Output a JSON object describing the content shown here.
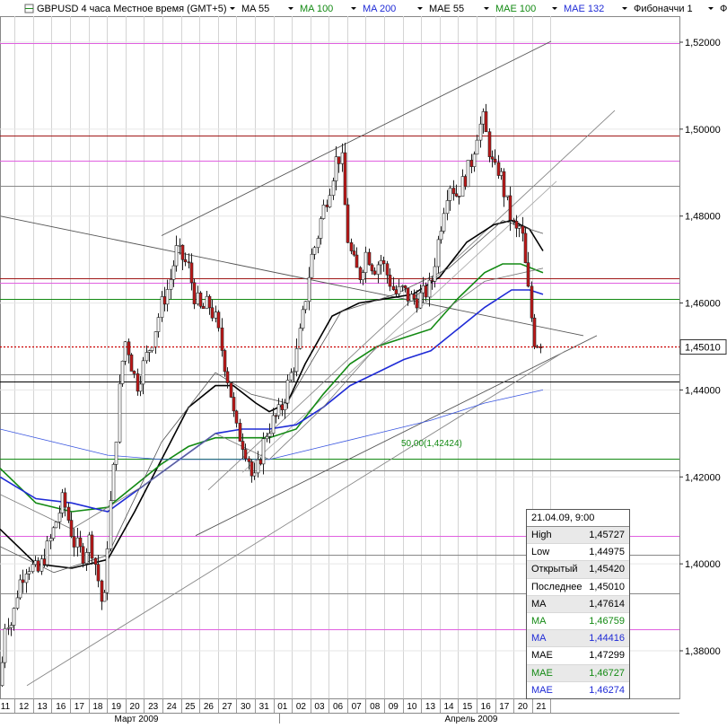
{
  "header": {
    "title": "GBPUSD 4 часа Местное время (GMT+5)",
    "indicators": [
      {
        "label": "MA 55",
        "color": "#000000"
      },
      {
        "label": "MA 100",
        "color": "#138a13"
      },
      {
        "label": "MA 200",
        "color": "#1f2bd6"
      },
      {
        "label": "MAE 55",
        "color": "#000000"
      },
      {
        "label": "MAE 100",
        "color": "#138a13"
      },
      {
        "label": "MAE 132",
        "color": "#1f2bd6"
      },
      {
        "label": "Фибоначчи 1",
        "color": "#000000"
      },
      {
        "label": "Фибона",
        "color": "#000000"
      }
    ],
    "dropdown_icon": "triangle-down-icon"
  },
  "chart_data": {
    "type": "candlestick",
    "symbol": "GBPUSD",
    "timeframe": "4 часа",
    "y_axis": {
      "min": 1.37,
      "max": 1.52,
      "ticks": [
        "1,52000",
        "1,50000",
        "1,48000",
        "1,46000",
        "1,44000",
        "1,42000",
        "1,40000",
        "1,38000"
      ]
    },
    "x_axis": {
      "day_labels": [
        "11",
        "12",
        "13",
        "16",
        "17",
        "18",
        "19",
        "20",
        "23",
        "24",
        "25",
        "26",
        "27",
        "30",
        "31",
        "01",
        "02",
        "03",
        "06",
        "07",
        "08",
        "09",
        "10",
        "13",
        "14",
        "15",
        "16",
        "17",
        "20",
        "21"
      ],
      "month_labels": [
        "Март 2009",
        "Апрель 2009"
      ]
    },
    "last_price_label": "1,45010",
    "fibonacci_label": "50,00(1,42424)",
    "close_path": [
      [
        0,
        1.372
      ],
      [
        6,
        1.388
      ],
      [
        13,
        1.386
      ],
      [
        20,
        1.395
      ],
      [
        30,
        1.4
      ],
      [
        42,
        1.398
      ],
      [
        55,
        1.405
      ],
      [
        70,
        1.415
      ],
      [
        82,
        1.405
      ],
      [
        92,
        1.402
      ],
      [
        100,
        1.406
      ],
      [
        108,
        1.398
      ],
      [
        115,
        1.388
      ],
      [
        120,
        1.408
      ],
      [
        128,
        1.426
      ],
      [
        134,
        1.444
      ],
      [
        140,
        1.452
      ],
      [
        146,
        1.446
      ],
      [
        152,
        1.441
      ],
      [
        160,
        1.446
      ],
      [
        170,
        1.452
      ],
      [
        180,
        1.46
      ],
      [
        188,
        1.464
      ],
      [
        196,
        1.472
      ],
      [
        204,
        1.47
      ],
      [
        210,
        1.468
      ],
      [
        216,
        1.462
      ],
      [
        224,
        1.458
      ],
      [
        232,
        1.46
      ],
      [
        240,
        1.456
      ],
      [
        248,
        1.448
      ],
      [
        256,
        1.44
      ],
      [
        262,
        1.431
      ],
      [
        268,
        1.429
      ],
      [
        276,
        1.425
      ],
      [
        282,
        1.418
      ],
      [
        288,
        1.423
      ],
      [
        296,
        1.43
      ],
      [
        304,
        1.433
      ],
      [
        312,
        1.435
      ],
      [
        320,
        1.441
      ],
      [
        330,
        1.448
      ],
      [
        338,
        1.458
      ],
      [
        346,
        1.47
      ],
      [
        352,
        1.474
      ],
      [
        358,
        1.48
      ],
      [
        366,
        1.486
      ],
      [
        374,
        1.493
      ],
      [
        380,
        1.494
      ],
      [
        386,
        1.476
      ],
      [
        392,
        1.47
      ],
      [
        400,
        1.466
      ],
      [
        408,
        1.472
      ],
      [
        416,
        1.468
      ],
      [
        424,
        1.47
      ],
      [
        432,
        1.466
      ],
      [
        440,
        1.462
      ],
      [
        448,
        1.463
      ],
      [
        456,
        1.461
      ],
      [
        464,
        1.461
      ],
      [
        472,
        1.462
      ],
      [
        480,
        1.464
      ],
      [
        486,
        1.472
      ],
      [
        494,
        1.482
      ],
      [
        500,
        1.488
      ],
      [
        508,
        1.485
      ],
      [
        516,
        1.488
      ],
      [
        524,
        1.492
      ],
      [
        532,
        1.5
      ],
      [
        538,
        1.502
      ],
      [
        544,
        1.496
      ],
      [
        550,
        1.49
      ],
      [
        556,
        1.491
      ],
      [
        562,
        1.485
      ],
      [
        568,
        1.48
      ],
      [
        574,
        1.476
      ],
      [
        580,
        1.478
      ],
      [
        584,
        1.47
      ],
      [
        588,
        1.463
      ],
      [
        592,
        1.456
      ],
      [
        596,
        1.45
      ],
      [
        600,
        1.452
      ],
      [
        604,
        1.45
      ]
    ],
    "moving_averages": [
      {
        "name": "MA 55",
        "color": "#000000",
        "width": 1.6,
        "points": [
          [
            0,
            1.408
          ],
          [
            40,
            1.4
          ],
          [
            80,
            1.399
          ],
          [
            120,
            1.401
          ],
          [
            150,
            1.412
          ],
          [
            180,
            1.424
          ],
          [
            210,
            1.436
          ],
          [
            240,
            1.441
          ],
          [
            260,
            1.441
          ],
          [
            285,
            1.437
          ],
          [
            300,
            1.435
          ],
          [
            320,
            1.437
          ],
          [
            340,
            1.446
          ],
          [
            370,
            1.457
          ],
          [
            400,
            1.46
          ],
          [
            430,
            1.461
          ],
          [
            460,
            1.462
          ],
          [
            490,
            1.466
          ],
          [
            520,
            1.474
          ],
          [
            550,
            1.478
          ],
          [
            570,
            1.479
          ],
          [
            590,
            1.477
          ],
          [
            605,
            1.472
          ]
        ]
      },
      {
        "name": "MA 100",
        "color": "#138a13",
        "width": 1.6,
        "points": [
          [
            0,
            1.422
          ],
          [
            40,
            1.414
          ],
          [
            80,
            1.412
          ],
          [
            120,
            1.413
          ],
          [
            150,
            1.418
          ],
          [
            180,
            1.423
          ],
          [
            210,
            1.427
          ],
          [
            240,
            1.429
          ],
          [
            270,
            1.429
          ],
          [
            300,
            1.429
          ],
          [
            330,
            1.431
          ],
          [
            360,
            1.439
          ],
          [
            390,
            1.446
          ],
          [
            420,
            1.45
          ],
          [
            450,
            1.452
          ],
          [
            480,
            1.454
          ],
          [
            510,
            1.461
          ],
          [
            540,
            1.467
          ],
          [
            560,
            1.469
          ],
          [
            580,
            1.469
          ],
          [
            605,
            1.467
          ]
        ]
      },
      {
        "name": "MA 200",
        "color": "#1f2bd6",
        "width": 1.6,
        "points": [
          [
            0,
            1.42
          ],
          [
            40,
            1.415
          ],
          [
            80,
            1.414
          ],
          [
            120,
            1.412
          ],
          [
            160,
            1.418
          ],
          [
            200,
            1.424
          ],
          [
            240,
            1.43
          ],
          [
            270,
            1.431
          ],
          [
            300,
            1.431
          ],
          [
            330,
            1.432
          ],
          [
            360,
            1.436
          ],
          [
            390,
            1.441
          ],
          [
            420,
            1.444
          ],
          [
            450,
            1.447
          ],
          [
            480,
            1.449
          ],
          [
            510,
            1.454
          ],
          [
            540,
            1.459
          ],
          [
            570,
            1.463
          ],
          [
            590,
            1.463
          ],
          [
            605,
            1.462
          ]
        ]
      },
      {
        "name": "MAE 55",
        "color": "#555555",
        "width": 0.8,
        "points": [
          [
            0,
            1.404
          ],
          [
            60,
            1.398
          ],
          [
            120,
            1.402
          ],
          [
            180,
            1.428
          ],
          [
            240,
            1.444
          ],
          [
            280,
            1.439
          ],
          [
            320,
            1.437
          ],
          [
            380,
            1.458
          ],
          [
            440,
            1.462
          ],
          [
            500,
            1.468
          ],
          [
            560,
            1.479
          ],
          [
            605,
            1.476
          ]
        ]
      },
      {
        "name": "MAE 100",
        "color": "#777777",
        "width": 0.8,
        "points": [
          [
            0,
            1.416
          ],
          [
            80,
            1.408
          ],
          [
            160,
            1.418
          ],
          [
            240,
            1.43
          ],
          [
            300,
            1.424
          ],
          [
            360,
            1.436
          ],
          [
            420,
            1.45
          ],
          [
            480,
            1.456
          ],
          [
            540,
            1.465
          ],
          [
            605,
            1.468
          ]
        ]
      },
      {
        "name": "MAE 132",
        "color": "#3a56e0",
        "width": 0.8,
        "points": [
          [
            0,
            1.431
          ],
          [
            60,
            1.428
          ],
          [
            120,
            1.425
          ],
          [
            180,
            1.424
          ],
          [
            240,
            1.424
          ],
          [
            300,
            1.424
          ],
          [
            360,
            1.427
          ],
          [
            420,
            1.43
          ],
          [
            480,
            1.433
          ],
          [
            540,
            1.437
          ],
          [
            605,
            1.44
          ]
        ]
      }
    ],
    "horizontal_levels": [
      {
        "y": 1.5197,
        "color": "#e060e0"
      },
      {
        "y": 1.4985,
        "color": "#a01818"
      },
      {
        "y": 1.4928,
        "color": "#e060e0"
      },
      {
        "y": 1.487,
        "color": "#888888"
      },
      {
        "y": 1.4657,
        "color": "#a01818"
      },
      {
        "y": 1.4647,
        "color": "#e060e0"
      },
      {
        "y": 1.461,
        "color": "#138a13"
      },
      {
        "y": 1.4436,
        "color": "#888888"
      },
      {
        "y": 1.442,
        "color": "#000000"
      },
      {
        "y": 1.4348,
        "color": "#888888"
      },
      {
        "y": 1.4242,
        "color": "#138a13"
      },
      {
        "y": 1.4215,
        "color": "#888888"
      },
      {
        "y": 1.4065,
        "color": "#e060e0"
      },
      {
        "y": 1.402,
        "color": "#888888"
      },
      {
        "y": 1.3933,
        "color": "#888888"
      },
      {
        "y": 1.385,
        "color": "#e060e0"
      }
    ],
    "trend_lines": [
      {
        "from": [
          180,
          1.4755
        ],
        "to": [
          614,
          1.5202
        ],
        "color": "#555555"
      },
      {
        "from": [
          0,
          1.48
        ],
        "to": [
          650,
          1.4525
        ],
        "color": "#555555"
      },
      {
        "from": [
          218,
          1.4065
        ],
        "to": [
          665,
          1.4525
        ],
        "color": "#555555"
      },
      {
        "from": [
          30,
          1.372
        ],
        "to": [
          630,
          1.449
        ],
        "color": "#888888"
      },
      {
        "from": [
          232,
          1.417
        ],
        "to": [
          685,
          1.5043
        ],
        "color": "#888888"
      },
      {
        "from": [
          270,
          1.421
        ],
        "to": [
          620,
          1.488
        ],
        "color": "#aaaaaa"
      }
    ],
    "bid_line": {
      "y": 1.4501,
      "color": "#cc0000"
    }
  },
  "infobox": {
    "timestamp": "21.04.09, 9:00",
    "rows": [
      {
        "label": "High",
        "value": "1,45727",
        "color": "#000000"
      },
      {
        "label": "Low",
        "value": "1,44975",
        "color": "#000000"
      },
      {
        "label": "Открытый",
        "value": "1,45420",
        "color": "#000000"
      },
      {
        "label": "Последнее",
        "value": "1,45010",
        "color": "#000000"
      },
      {
        "label": "MA",
        "value": "1,47614",
        "color": "#000000"
      },
      {
        "label": "MA",
        "value": "1,46759",
        "color": "#138a13"
      },
      {
        "label": "MA",
        "value": "1,44416",
        "color": "#1f2bd6"
      },
      {
        "label": "MAE",
        "value": "1,47299",
        "color": "#000000"
      },
      {
        "label": "MAE",
        "value": "1,46727",
        "color": "#138a13"
      },
      {
        "label": "MAE",
        "value": "1,46274",
        "color": "#1f2bd6"
      }
    ]
  }
}
